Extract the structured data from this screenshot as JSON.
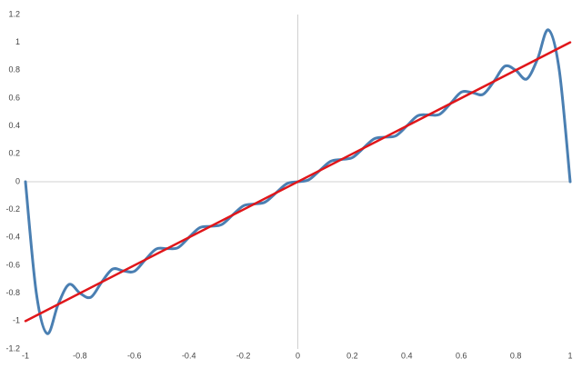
{
  "chart_data": {
    "type": "line",
    "xlim": [
      -1,
      1
    ],
    "ylim": [
      -1.2,
      1.2
    ],
    "xticks": [
      -1,
      -0.8,
      -0.6,
      -0.4,
      -0.2,
      0,
      0.2,
      0.4,
      0.6,
      0.8,
      1
    ],
    "yticks": [
      -1.2,
      -1,
      -0.8,
      -0.6,
      -0.4,
      -0.2,
      0,
      0.2,
      0.4,
      0.6,
      0.8,
      1,
      1.2
    ],
    "zero_axes": true,
    "series": [
      {
        "color": "#4a7fb2",
        "smooth": true,
        "x": [
          -1,
          -0.96,
          -0.92,
          -0.88,
          -0.84,
          -0.8,
          -0.76,
          -0.72,
          -0.68,
          -0.64,
          -0.6,
          -0.56,
          -0.52,
          -0.48,
          -0.44,
          -0.4,
          -0.36,
          -0.32,
          -0.28,
          -0.24,
          -0.2,
          -0.16,
          -0.12,
          -0.08,
          -0.04,
          0,
          0.04,
          0.08,
          0.12,
          0.16,
          0.2,
          0.24,
          0.28,
          0.32,
          0.36,
          0.4,
          0.44,
          0.48,
          0.52,
          0.56,
          0.6,
          0.64,
          0.68,
          0.72,
          0.76,
          0.8,
          0.84,
          0.88,
          0.92,
          0.96,
          1
        ],
        "values": [
          0,
          -0.8,
          -1.09,
          -0.88,
          -0.737,
          -0.8,
          -0.829,
          -0.72,
          -0.627,
          -0.64,
          -0.643,
          -0.56,
          -0.483,
          -0.48,
          -0.473,
          -0.4,
          -0.33,
          -0.32,
          -0.308,
          -0.24,
          -0.173,
          -0.16,
          -0.146,
          -0.08,
          -0.014,
          0,
          0.014,
          0.08,
          0.146,
          0.16,
          0.173,
          0.24,
          0.308,
          0.32,
          0.33,
          0.4,
          0.473,
          0.48,
          0.483,
          0.56,
          0.643,
          0.64,
          0.627,
          0.72,
          0.829,
          0.8,
          0.737,
          0.88,
          1.09,
          0.8,
          0
        ]
      },
      {
        "color": "#e0161a",
        "smooth": false,
        "x": [
          -1,
          1
        ],
        "values": [
          -1,
          1
        ]
      }
    ]
  }
}
